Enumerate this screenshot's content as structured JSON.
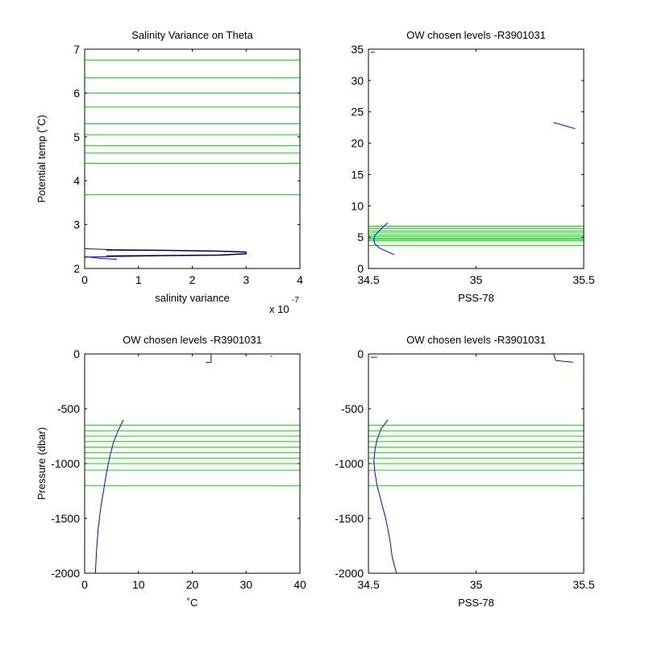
{
  "chart_data": [
    {
      "id": "salinity-variance",
      "type": "line",
      "title": "Salinity Variance on Theta",
      "xlabel": "salinity variance",
      "ylabel": "Potential temp (˚C)",
      "x_multiplier_label": "x 10",
      "x_multiplier_exponent": "-7",
      "xlim": [
        0,
        4
      ],
      "ylim": [
        2,
        7
      ],
      "x_ticks": [
        0,
        1,
        2,
        3,
        4
      ],
      "x_tick_labels": [
        "0",
        "1",
        "2",
        "3",
        "4"
      ],
      "y_ticks": [
        2,
        3,
        4,
        5,
        6,
        7
      ],
      "y_tick_labels": [
        "2",
        "3",
        "4",
        "5",
        "6",
        "7"
      ],
      "grid": false,
      "reference_levels": [
        3.68,
        4.4,
        4.63,
        4.8,
        5.05,
        5.3,
        5.68,
        6.0,
        6.35,
        6.75
      ],
      "series": [
        {
          "color": "#0000ff",
          "x": [
            0,
            0.5,
            1.5,
            2.5,
            3.0,
            3.0,
            2.5,
            1.5,
            0.5,
            0,
            0,
            0.3,
            0.6
          ],
          "y": [
            2.45,
            2.43,
            2.42,
            2.4,
            2.38,
            2.33,
            2.3,
            2.29,
            2.27,
            2.26,
            2.27,
            2.23,
            2.21
          ]
        },
        {
          "color": "#000000",
          "x": [
            0.4,
            1.5,
            2.5,
            3.0,
            3.0,
            2.5,
            1.5,
            0.4
          ],
          "y": [
            2.42,
            2.41,
            2.39,
            2.37,
            2.34,
            2.31,
            2.3,
            2.29
          ]
        }
      ]
    },
    {
      "id": "theta-vs-salinity",
      "type": "line",
      "title": "OW chosen levels -R3901031",
      "xlabel": "PSS-78",
      "ylabel": "",
      "xlim": [
        34.5,
        35.5
      ],
      "ylim": [
        0,
        35
      ],
      "x_ticks": [
        34.5,
        35,
        35.5
      ],
      "x_tick_labels": [
        "34.5",
        "35",
        "35.5"
      ],
      "y_ticks": [
        0,
        5,
        10,
        15,
        20,
        25,
        30,
        35
      ],
      "y_tick_labels": [
        "0",
        "5",
        "10",
        "15",
        "20",
        "25",
        "30",
        "35"
      ],
      "grid": false,
      "reference_levels": [
        3.68,
        4.4,
        4.63,
        4.8,
        5.05,
        5.3,
        5.68,
        6.0,
        6.35,
        6.75
      ],
      "series": [
        {
          "color": "#0000ff",
          "x": [
            34.62,
            34.58,
            34.55,
            34.53,
            34.525,
            34.53,
            34.55,
            34.57,
            34.59
          ],
          "y": [
            2.2,
            2.8,
            3.3,
            3.9,
            4.6,
            5.3,
            6.0,
            6.7,
            7.3
          ]
        },
        {
          "color": "#0000ff",
          "x": [
            35.36,
            35.46
          ],
          "y": [
            23.3,
            22.3
          ]
        },
        {
          "color": "#0000ff",
          "x": [
            34.51,
            34.53
          ],
          "y": [
            34.5,
            34.5
          ]
        }
      ]
    },
    {
      "id": "pressure-vs-theta",
      "type": "line",
      "title": "OW chosen levels -R3901031",
      "xlabel": "˚C",
      "ylabel": "Pressure (dbar)",
      "xlim": [
        0,
        40
      ],
      "ylim": [
        -2000,
        0
      ],
      "x_ticks": [
        0,
        10,
        20,
        30,
        40
      ],
      "x_tick_labels": [
        "0",
        "10",
        "20",
        "30",
        "40"
      ],
      "y_ticks": [
        -2000,
        -1500,
        -1000,
        -500,
        0
      ],
      "y_tick_labels": [
        "-2000",
        "-1500",
        "-1000",
        "-500",
        "0"
      ],
      "grid": false,
      "reference_levels": [
        -650,
        -700,
        -750,
        -800,
        -850,
        -900,
        -950,
        -1000,
        -1060,
        -1200
      ],
      "series": [
        {
          "color": "#0000ff",
          "x": [
            2.0,
            2.2,
            2.5,
            3.0,
            3.5,
            4.0,
            4.6,
            5.4,
            6.2,
            7.2
          ],
          "y": [
            -2000,
            -1800,
            -1600,
            -1400,
            -1250,
            -1100,
            -950,
            -800,
            -700,
            -600
          ]
        },
        {
          "color": "#0000ff",
          "x": [
            22.5,
            23.5,
            23.5
          ],
          "y": [
            -80,
            -75,
            0
          ]
        },
        {
          "color": "#0000ff",
          "x": [
            34.5,
            34.8
          ],
          "y": [
            -20,
            -20
          ]
        }
      ]
    },
    {
      "id": "pressure-vs-salinity",
      "type": "line",
      "title": "OW chosen levels -R3901031",
      "xlabel": "PSS-78",
      "ylabel": "",
      "xlim": [
        34.5,
        35.5
      ],
      "ylim": [
        -2000,
        0
      ],
      "x_ticks": [
        34.5,
        35,
        35.5
      ],
      "x_tick_labels": [
        "34.5",
        "35",
        "35.5"
      ],
      "y_ticks": [
        -2000,
        -1500,
        -1000,
        -500,
        0
      ],
      "y_tick_labels": [
        "-2000",
        "-1500",
        "-1000",
        "-500",
        "0"
      ],
      "grid": false,
      "reference_levels": [
        -650,
        -700,
        -750,
        -800,
        -850,
        -900,
        -950,
        -1000,
        -1060,
        -1200
      ],
      "series": [
        {
          "color": "#0000ff",
          "x": [
            34.59,
            34.56,
            34.54,
            34.53,
            34.525,
            34.53,
            34.54,
            34.56,
            34.58,
            34.6,
            34.61,
            34.63
          ],
          "y": [
            -600,
            -680,
            -780,
            -880,
            -980,
            -1080,
            -1200,
            -1350,
            -1500,
            -1700,
            -1850,
            -2000
          ]
        },
        {
          "color": "#0000ff",
          "x": [
            35.36,
            35.37,
            35.45
          ],
          "y": [
            0,
            -60,
            -75
          ]
        },
        {
          "color": "#0000ff",
          "x": [
            34.51,
            34.54
          ],
          "y": [
            -30,
            -30
          ]
        }
      ]
    }
  ]
}
